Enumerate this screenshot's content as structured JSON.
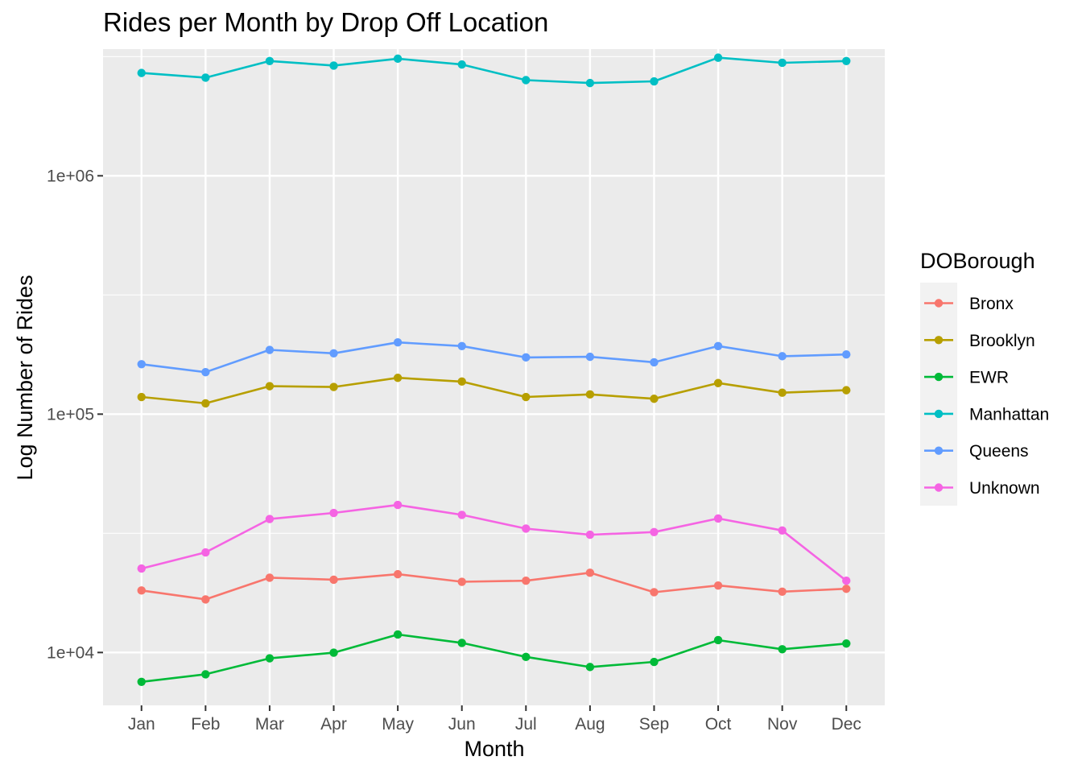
{
  "chart_data": {
    "type": "line",
    "title": "Rides per Month by Drop Off Location",
    "xlabel": "Month",
    "ylabel": "Log Number of Rides",
    "y_scale": "log10",
    "ylim": [
      6000,
      3400000
    ],
    "y_ticks": [
      {
        "value": 10000,
        "label": "1e+04"
      },
      {
        "value": 100000,
        "label": "1e+05"
      },
      {
        "value": 1000000,
        "label": "1e+06"
      }
    ],
    "grid": true,
    "legend_title": "DOBorough",
    "legend_position": "right",
    "categories": [
      "Jan",
      "Feb",
      "Mar",
      "Apr",
      "May",
      "Jun",
      "Jul",
      "Aug",
      "Sep",
      "Oct",
      "Nov",
      "Dec"
    ],
    "series": [
      {
        "name": "Bronx",
        "color": "#F8766D",
        "values": [
          18200,
          16700,
          20600,
          20200,
          21300,
          19800,
          20000,
          21600,
          17900,
          19100,
          18000,
          18500
        ]
      },
      {
        "name": "Brooklyn",
        "color": "#B79F00",
        "values": [
          118000,
          111000,
          131000,
          130000,
          142000,
          137000,
          118000,
          121000,
          116000,
          135000,
          123000,
          126000
        ]
      },
      {
        "name": "EWR",
        "color": "#00BA38",
        "values": [
          7530,
          8100,
          9450,
          9980,
          11900,
          10970,
          9580,
          8690,
          9130,
          11270,
          10320,
          10900
        ]
      },
      {
        "name": "Manhattan",
        "color": "#00BFC4",
        "values": [
          2700000,
          2580000,
          3030000,
          2900000,
          3100000,
          2930000,
          2520000,
          2450000,
          2490000,
          3130000,
          2980000,
          3030000
        ]
      },
      {
        "name": "Queens",
        "color": "#619CFF",
        "values": [
          162000,
          150000,
          186000,
          180000,
          200000,
          193000,
          173000,
          174000,
          165000,
          193000,
          175000,
          178000
        ]
      },
      {
        "name": "Unknown",
        "color": "#F564E3",
        "values": [
          22500,
          26300,
          36300,
          38500,
          41600,
          37800,
          33100,
          31200,
          32000,
          36500,
          32500,
          20000
        ]
      }
    ]
  }
}
